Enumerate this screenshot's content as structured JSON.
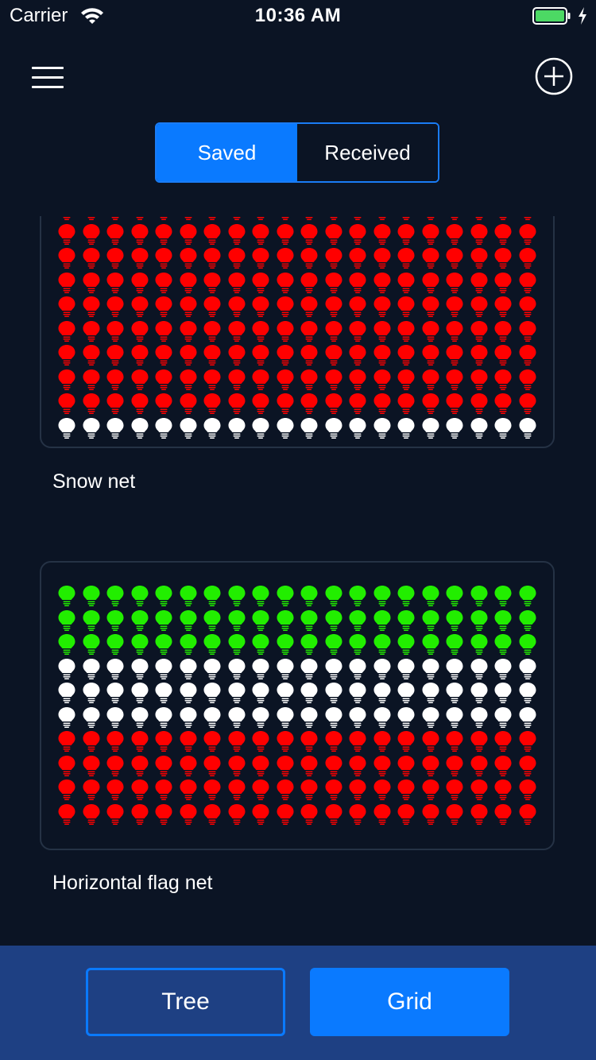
{
  "status_bar": {
    "carrier": "Carrier",
    "time": "10:36 AM",
    "battery_color": "#4cd964"
  },
  "header": {
    "menu_icon": "hamburger-menu-icon",
    "add_icon": "plus-circle-icon"
  },
  "segmented_control": {
    "options": [
      {
        "label": "Saved",
        "selected": true
      },
      {
        "label": "Received",
        "selected": false
      }
    ],
    "accent": "#0a7aff"
  },
  "nets": [
    {
      "title": "Snow net",
      "columns": 20,
      "rows": [
        "red",
        "red",
        "red",
        "red",
        "red",
        "red",
        "red",
        "red",
        "red",
        "white"
      ]
    },
    {
      "title": "Horizontal flag net",
      "columns": 20,
      "rows": [
        "green",
        "green",
        "green",
        "white",
        "white",
        "white",
        "red",
        "red",
        "red",
        "red"
      ]
    }
  ],
  "colors": {
    "red": "#ff0000",
    "white": "#ffffff",
    "green": "#22ee00"
  },
  "tabbar": {
    "tree_label": "Tree",
    "grid_label": "Grid",
    "selected": "Grid"
  }
}
